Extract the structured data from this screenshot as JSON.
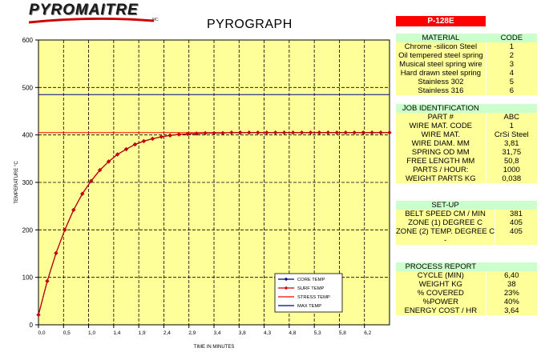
{
  "brand": {
    "name": "PYROMAITRE",
    "mark": "MC"
  },
  "page_title": "PYROGRAPH",
  "badge": "P-128E",
  "material": {
    "header": [
      "MATERIAL",
      "CODE"
    ],
    "rows": [
      [
        "Chrome -silicon Steel",
        "1"
      ],
      [
        "Oil tempered steel  spring",
        "2"
      ],
      [
        "Musical  steel spring wire",
        "3"
      ],
      [
        "Hard drawn steel spring",
        "4"
      ],
      [
        "Stainless 302",
        "5"
      ],
      [
        "Stainless 316",
        "6"
      ]
    ]
  },
  "job": {
    "header": "JOB IDENTIFICATION",
    "rows": [
      [
        "PART #",
        "ABC"
      ],
      [
        "WIRE MAT. CODE",
        "1"
      ],
      [
        "WIRE MAT.",
        "CrSi Steel"
      ],
      [
        "WIRE DIAM.  MM",
        "3,81"
      ],
      [
        "SPRING OD MM",
        "31,75"
      ],
      [
        "FREE LENGTH  MM",
        "50,8"
      ],
      [
        "PARTS / HOUR:",
        "1000"
      ],
      [
        "WEIGHT PARTS  KG",
        "0,038"
      ]
    ]
  },
  "setup": {
    "header": "SET-UP",
    "rows": [
      [
        "BELT SPEED CM / MIN",
        "381"
      ],
      [
        "ZONE (1) DEGREE  C",
        "405"
      ],
      [
        "ZONE (2) TEMP. DEGREE C",
        "405"
      ],
      [
        "-",
        ""
      ]
    ]
  },
  "process": {
    "header": "PROCESS REPORT",
    "rows": [
      [
        "CYCLE (MIN)",
        "6,40"
      ],
      [
        "WEIGHT KG",
        "38"
      ],
      [
        "% COVERED",
        "23%"
      ],
      [
        "%POWER",
        "40%"
      ],
      [
        "ENERGY COST / HR",
        "3,64"
      ]
    ]
  },
  "chart_data": {
    "type": "line",
    "title": "PYROGRAPH",
    "xlabel": "TIME IN MINUTES",
    "ylabel": "TEMPERATURE °C",
    "xlim": [
      0,
      6.4
    ],
    "ylim": [
      0,
      600
    ],
    "x_ticks": [
      "0,0",
      "0,5",
      "1,0",
      "1,4",
      "1,9",
      "2,4",
      "2,9",
      "3,4",
      "3,8",
      "4,3",
      "4,8",
      "5,3",
      "5,8",
      "6,2"
    ],
    "y_ticks": [
      0,
      100,
      200,
      300,
      400,
      500,
      600
    ],
    "grid": true,
    "plot_background": "#ffff99",
    "legend_position": "bottom-center",
    "series": [
      {
        "name": "CORE TEMP",
        "color": "#000080",
        "marker": "diamond",
        "x": [
          0.0,
          0.16,
          0.32,
          0.48,
          0.64,
          0.8,
          0.96,
          1.12,
          1.28,
          1.44,
          1.6,
          1.76,
          1.92,
          2.08,
          2.24,
          2.4,
          2.56,
          2.72,
          2.88,
          3.04,
          3.2,
          3.36,
          3.52,
          3.68,
          3.84,
          4.0,
          4.16,
          4.32,
          4.48,
          4.64,
          4.8,
          4.96,
          5.12,
          5.28,
          5.44,
          5.6,
          5.76,
          5.92,
          6.08,
          6.24,
          6.4
        ],
        "y": [
          21,
          92,
          151,
          200,
          242,
          276,
          303,
          326,
          344,
          359,
          370,
          380,
          387,
          392,
          396,
          399,
          401,
          402,
          403,
          404,
          404,
          404,
          405,
          405,
          405,
          405,
          405,
          405,
          405,
          405,
          405,
          405,
          405,
          405,
          405,
          405,
          405,
          405,
          405,
          405,
          405
        ]
      },
      {
        "name": "SURF TEMP",
        "color": "#cc0000",
        "marker": "diamond",
        "x": [
          0.0,
          0.16,
          0.32,
          0.48,
          0.64,
          0.8,
          0.96,
          1.12,
          1.28,
          1.44,
          1.6,
          1.76,
          1.92,
          2.08,
          2.24,
          2.4,
          2.56,
          2.72,
          2.88,
          3.04,
          3.2,
          3.36,
          3.52,
          3.68,
          3.84,
          4.0,
          4.16,
          4.32,
          4.48,
          4.64,
          4.8,
          4.96,
          5.12,
          5.28,
          5.44,
          5.6,
          5.76,
          5.92,
          6.08,
          6.24,
          6.4
        ],
        "y": [
          21,
          92,
          151,
          200,
          242,
          276,
          303,
          326,
          344,
          359,
          370,
          380,
          387,
          392,
          396,
          399,
          401,
          402,
          403,
          404,
          404,
          404,
          405,
          405,
          405,
          405,
          405,
          405,
          405,
          405,
          405,
          405,
          405,
          405,
          405,
          405,
          405,
          405,
          405,
          405,
          405
        ]
      },
      {
        "name": "STRESS TEMP",
        "color": "#ff0000",
        "constant": 405
      },
      {
        "name": "MAX TEMP",
        "color": "#000080",
        "constant": 485
      }
    ]
  }
}
